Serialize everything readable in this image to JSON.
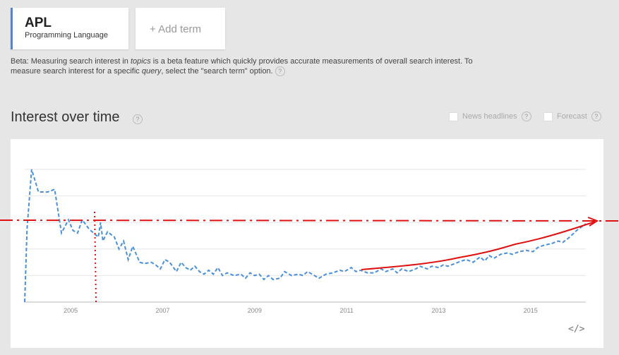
{
  "term_card": {
    "title": "APL",
    "subtitle": "Programming Language"
  },
  "add_term": {
    "label": "+ Add term"
  },
  "beta_note": {
    "part1": "Beta: Measuring search interest in ",
    "topics": "topics",
    "part2": " is a beta feature which quickly provides accurate measurements of overall search interest. To measure search interest for a specific ",
    "query": "query",
    "part3": ", select the \"search term\" option."
  },
  "section": {
    "title": "Interest over time"
  },
  "options": {
    "news_headlines": "News headlines",
    "forecast": "Forecast"
  },
  "icons": {
    "help": "?",
    "embed": "</>"
  },
  "colors": {
    "accent": "#4285f4",
    "series": "#4a90d9",
    "annotation": "#e01010"
  },
  "chart_data": {
    "type": "line",
    "x_ticks": [
      "2005",
      "2007",
      "2009",
      "2011",
      "2013",
      "2015"
    ],
    "x_range": [
      2004.0,
      2016.2
    ],
    "grid": true,
    "series": [
      {
        "values": [
          [
            2004.0,
            0
          ],
          [
            2004.05,
            55
          ],
          [
            2004.15,
            100
          ],
          [
            2004.3,
            83
          ],
          [
            2004.5,
            83
          ],
          [
            2004.65,
            85
          ],
          [
            2004.8,
            52
          ],
          [
            2004.95,
            62
          ],
          [
            2005.05,
            54
          ],
          [
            2005.15,
            52
          ],
          [
            2005.25,
            62
          ],
          [
            2005.4,
            55
          ],
          [
            2005.5,
            52
          ],
          [
            2005.6,
            49
          ],
          [
            2005.65,
            60
          ],
          [
            2005.7,
            46
          ],
          [
            2005.8,
            53
          ],
          [
            2005.95,
            49
          ],
          [
            2006.05,
            40
          ],
          [
            2006.15,
            46
          ],
          [
            2006.25,
            32
          ],
          [
            2006.35,
            42
          ],
          [
            2006.5,
            30
          ],
          [
            2006.6,
            29
          ],
          [
            2006.75,
            30
          ],
          [
            2006.85,
            28
          ],
          [
            2006.95,
            25
          ],
          [
            2007.05,
            32
          ],
          [
            2007.15,
            30
          ],
          [
            2007.3,
            23
          ],
          [
            2007.4,
            30
          ],
          [
            2007.5,
            26
          ],
          [
            2007.6,
            24
          ],
          [
            2007.7,
            27
          ],
          [
            2007.8,
            23
          ],
          [
            2007.9,
            21
          ],
          [
            2008.0,
            24
          ],
          [
            2008.1,
            21
          ],
          [
            2008.2,
            26
          ],
          [
            2008.3,
            20
          ],
          [
            2008.4,
            22
          ],
          [
            2008.55,
            20
          ],
          [
            2008.7,
            21
          ],
          [
            2008.8,
            18
          ],
          [
            2008.9,
            22
          ],
          [
            2009.0,
            20
          ],
          [
            2009.1,
            21
          ],
          [
            2009.2,
            17
          ],
          [
            2009.3,
            20
          ],
          [
            2009.4,
            17
          ],
          [
            2009.55,
            18
          ],
          [
            2009.65,
            23
          ],
          [
            2009.8,
            20
          ],
          [
            2009.95,
            21
          ],
          [
            2010.05,
            20
          ],
          [
            2010.15,
            23
          ],
          [
            2010.3,
            20
          ],
          [
            2010.4,
            18
          ],
          [
            2010.55,
            21
          ],
          [
            2010.7,
            22
          ],
          [
            2010.85,
            24
          ],
          [
            2010.95,
            23
          ],
          [
            2011.1,
            26
          ],
          [
            2011.2,
            23
          ],
          [
            2011.3,
            24
          ],
          [
            2011.45,
            22
          ],
          [
            2011.6,
            22
          ],
          [
            2011.75,
            25
          ],
          [
            2011.85,
            23
          ],
          [
            2012.0,
            25
          ],
          [
            2012.1,
            22
          ],
          [
            2012.2,
            25
          ],
          [
            2012.35,
            23
          ],
          [
            2012.5,
            25
          ],
          [
            2012.6,
            27
          ],
          [
            2012.75,
            25
          ],
          [
            2012.85,
            27
          ],
          [
            2013.0,
            26
          ],
          [
            2013.1,
            28
          ],
          [
            2013.2,
            27
          ],
          [
            2013.35,
            29
          ],
          [
            2013.5,
            31
          ],
          [
            2013.6,
            32
          ],
          [
            2013.75,
            30
          ],
          [
            2013.9,
            34
          ],
          [
            2014.0,
            31
          ],
          [
            2014.1,
            35
          ],
          [
            2014.2,
            33
          ],
          [
            2014.35,
            36
          ],
          [
            2014.5,
            37
          ],
          [
            2014.6,
            36
          ],
          [
            2014.75,
            38
          ],
          [
            2014.9,
            39
          ],
          [
            2015.05,
            38
          ],
          [
            2015.15,
            41
          ],
          [
            2015.3,
            43
          ],
          [
            2015.45,
            44
          ],
          [
            2015.6,
            46
          ],
          [
            2015.7,
            45
          ],
          [
            2015.85,
            49
          ],
          [
            2016.0,
            54
          ],
          [
            2016.2,
            59
          ]
        ]
      }
    ]
  }
}
